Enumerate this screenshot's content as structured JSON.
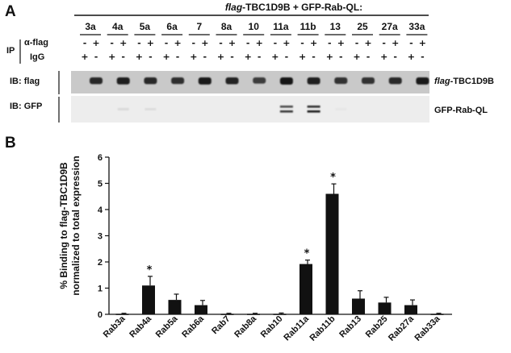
{
  "panel_a": {
    "letter": "A",
    "header_prefix": "flag",
    "header_suffix": "-TBC1D9B + GFP-Rab-QL:",
    "lanes": [
      "3a",
      "4a",
      "5a",
      "6a",
      "7",
      "8a",
      "10",
      "11a",
      "11b",
      "13",
      "25",
      "27a",
      "33a"
    ],
    "ip_label": "IP",
    "alpha_flag_label": "α-flag",
    "igg_label": "IgG",
    "alpha_flag_signs": [
      "-",
      "+"
    ],
    "igg_signs": [
      "+",
      "-"
    ],
    "ib_flag_label": "IB: flag",
    "ib_gfp_label": "IB: GFP",
    "flag_band_prefix": "flag",
    "flag_band_suffix": "-TBC1D9B",
    "gfp_band_label": "GFP-Rab-QL"
  },
  "panel_b": {
    "letter": "B"
  },
  "chart_data": {
    "type": "bar",
    "title": "",
    "xlabel": "",
    "ylabel": "% Binding to flag-TBC1D9B normalized to total expression",
    "ylabel_line1": "% Binding to flag-TBC1D9B",
    "ylabel_line2": "normalized to total expression",
    "ylim": [
      0,
      6
    ],
    "yticks": [
      0,
      1,
      2,
      3,
      4,
      5,
      6
    ],
    "categories": [
      "Rab3a",
      "Rab4a",
      "Rab5a",
      "Rab6a",
      "Rab7",
      "Rab8a",
      "Rab10",
      "Rab11a",
      "Rab11b",
      "Rab13",
      "Rab25",
      "Rab27a",
      "Rab33a"
    ],
    "values": [
      0.02,
      1.1,
      0.55,
      0.35,
      0.02,
      0.02,
      0.02,
      1.92,
      4.6,
      0.6,
      0.45,
      0.35,
      0.02
    ],
    "errors": [
      0.02,
      0.35,
      0.22,
      0.18,
      0.02,
      0.02,
      0.03,
      0.15,
      0.38,
      0.3,
      0.2,
      0.2,
      0.02
    ],
    "significant": [
      false,
      true,
      false,
      false,
      false,
      false,
      false,
      true,
      true,
      false,
      false,
      false,
      false
    ],
    "star_label": "*",
    "bar_color": "#111111",
    "grid": false,
    "legend": "none"
  }
}
